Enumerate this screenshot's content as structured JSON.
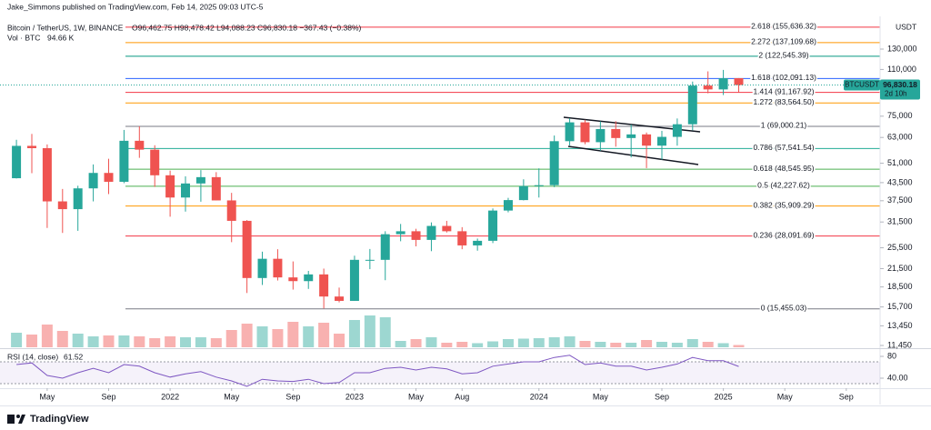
{
  "header": {
    "published": "Jake_Simmons published on TradingView.com, Feb 14, 2025 09:03 UTC-5",
    "symbol": "Bitcoin / TetherUS, 1W, BINANCE",
    "ohlc": "O96,462.75 H98,478.42 L94,088.23 C96,830.18 −367.43 (−0.38%)",
    "volume_label": "Vol · BTC",
    "volume_value": "94.66 K",
    "currency": "USDT",
    "ticker_tag": "BTCUSDT",
    "price_tag": "96,830.18",
    "countdown": "2d 10h"
  },
  "footer": {
    "brand": "TradingView"
  },
  "chart_data": {
    "type": "candlestick",
    "log_scale": true,
    "up_color": "#26a69a",
    "down_color": "#ef5350",
    "ylim": [
      11280,
      170000
    ],
    "yticks": [
      {
        "value": 130000,
        "label": "130,000"
      },
      {
        "value": 110000,
        "label": "110,000"
      },
      {
        "value": 75000,
        "label": "75,000"
      },
      {
        "value": 63000,
        "label": "63,000"
      },
      {
        "value": 51000,
        "label": "51,000"
      },
      {
        "value": 43500,
        "label": "43,500"
      },
      {
        "value": 37500,
        "label": "37,500"
      },
      {
        "value": 31500,
        "label": "31,500"
      },
      {
        "value": 25500,
        "label": "25,500"
      },
      {
        "value": 21500,
        "label": "21,500"
      },
      {
        "value": 18500,
        "label": "18,500"
      },
      {
        "value": 15700,
        "label": "15,700"
      },
      {
        "value": 13450,
        "label": "13,450"
      },
      {
        "value": 11450,
        "label": "11,450"
      }
    ],
    "xlim": [
      -1.07,
      56.2
    ],
    "xticks": [
      {
        "value": 2,
        "label": "May"
      },
      {
        "value": 6,
        "label": "Sep"
      },
      {
        "value": 10,
        "label": "2022"
      },
      {
        "value": 14,
        "label": "May"
      },
      {
        "value": 18,
        "label": "Sep"
      },
      {
        "value": 22,
        "label": "2023"
      },
      {
        "value": 26,
        "label": "May"
      },
      {
        "value": 29,
        "label": "Aug"
      },
      {
        "value": 34,
        "label": "2024"
      },
      {
        "value": 38,
        "label": "May"
      },
      {
        "value": 42,
        "label": "Sep"
      },
      {
        "value": 46,
        "label": "2025"
      },
      {
        "value": 50,
        "label": "May"
      },
      {
        "value": 54,
        "label": "Sep"
      }
    ],
    "open": [
      45100,
      58800,
      57700,
      37300,
      35000,
      41500,
      47100,
      43800,
      61300,
      57000,
      46200,
      38500,
      43200,
      45500,
      37600,
      31800,
      19900,
      23300,
      20000,
      19400,
      20500,
      17100,
      16500,
      23100,
      23100,
      28500,
      29200,
      27200,
      30500,
      29200,
      26000,
      27000,
      34600,
      37700,
      42300,
      42600,
      61100,
      71300,
      60600,
      67500,
      62700,
      64600,
      58900,
      63300,
      70200,
      96400,
      93400,
      102400
    ],
    "high": [
      61800,
      64850,
      59500,
      41300,
      42400,
      50500,
      52900,
      67000,
      69000,
      59100,
      48000,
      45800,
      48200,
      47400,
      40000,
      32000,
      24700,
      25200,
      22800,
      21100,
      21500,
      18400,
      23900,
      25250,
      29200,
      31000,
      29800,
      31400,
      31800,
      30200,
      27500,
      35200,
      38400,
      44700,
      48900,
      64000,
      73800,
      72800,
      71900,
      72000,
      70000,
      65600,
      66500,
      73600,
      99600,
      108300,
      109600,
      102500
    ],
    "low": [
      45000,
      47000,
      30000,
      28800,
      29300,
      37300,
      39600,
      43300,
      53300,
      42000,
      32900,
      34300,
      37200,
      37600,
      26700,
      17600,
      18800,
      19500,
      18100,
      18200,
      15500,
      16300,
      16500,
      21400,
      19550,
      26900,
      25800,
      24800,
      28900,
      25200,
      24900,
      26500,
      34100,
      37600,
      38500,
      41900,
      59000,
      59600,
      56500,
      58400,
      53500,
      49000,
      52500,
      58900,
      66800,
      90500,
      89200,
      91200
    ],
    "close": [
      58800,
      57700,
      37300,
      35000,
      41500,
      47100,
      43800,
      61300,
      57000,
      46200,
      38500,
      43200,
      45500,
      37600,
      31800,
      19900,
      23300,
      20000,
      19400,
      20500,
      17100,
      16500,
      23100,
      23100,
      28500,
      29200,
      27200,
      30500,
      29200,
      26000,
      27000,
      34600,
      37700,
      42300,
      42600,
      61100,
      71300,
      60600,
      67500,
      62700,
      64600,
      58900,
      63300,
      70200,
      96400,
      93400,
      102400,
      96830.18
    ],
    "volume": {
      "ylim": [
        0,
        10000
      ],
      "values": [
        1600,
        1400,
        2500,
        1800,
        1500,
        1200,
        1300,
        1300,
        1200,
        1000,
        1200,
        1100,
        1100,
        1000,
        1900,
        2600,
        2300,
        2000,
        2800,
        2300,
        2700,
        1500,
        3000,
        3500,
        3300,
        700,
        900,
        1100,
        500,
        600,
        450,
        650,
        900,
        950,
        1000,
        1100,
        1200,
        700,
        600,
        500,
        500,
        800,
        600,
        500,
        900,
        600,
        450,
        250
      ]
    },
    "fib_levels": [
      {
        "value": 155636.32,
        "label": "2.618 (155,636.32)",
        "color": "#f23645"
      },
      {
        "value": 137109.68,
        "label": "2.272 (137,109.68)",
        "color": "#ff9800"
      },
      {
        "value": 122545.39,
        "label": "2 (122,545.39)",
        "color": "#089981"
      },
      {
        "value": 102091.13,
        "label": "1.618 (102,091.13)",
        "color": "#2962ff"
      },
      {
        "value": 91167.92,
        "label": "1.414 (91,167.92)",
        "color": "#f23645"
      },
      {
        "value": 83564.5,
        "label": "1.272 (83,564.50)",
        "color": "#ff9800"
      },
      {
        "value": 69000.21,
        "label": "1 (69,000.21)",
        "color": "#787b86"
      },
      {
        "value": 57541.54,
        "label": "0.786 (57,541.54)",
        "color": "#22ab94"
      },
      {
        "value": 48545.95,
        "label": "0.618 (48,545.95)",
        "color": "#4caf50"
      },
      {
        "value": 42227.62,
        "label": "0.5 (42,227.62)",
        "color": "#4caf50"
      },
      {
        "value": 35909.29,
        "label": "0.382 (35,909.29)",
        "color": "#ff9800"
      },
      {
        "value": 28091.69,
        "label": "0.236 (28,091.69)",
        "color": "#f23645"
      },
      {
        "value": 15455.03,
        "label": "0 (15,455.03)",
        "color": "#787b86"
      }
    ],
    "rsi": {
      "label": "RSI (14, close)",
      "color": "#7e57c2",
      "ylim": [
        25,
        91.7
      ],
      "bands": [
        70,
        30
      ],
      "yticks": [
        80,
        {
          "value": 40,
          "label": "40.00"
        }
      ],
      "values": [
        65,
        68,
        45,
        40,
        50,
        58,
        50,
        65,
        62,
        50,
        42,
        48,
        52,
        42,
        35,
        25,
        38,
        35,
        34,
        38,
        30,
        32,
        50,
        50,
        58,
        60,
        55,
        60,
        57,
        48,
        50,
        62,
        66,
        70,
        70,
        78,
        82,
        65,
        68,
        62,
        62,
        55,
        60,
        66,
        78,
        72,
        72,
        61.52
      ]
    }
  }
}
